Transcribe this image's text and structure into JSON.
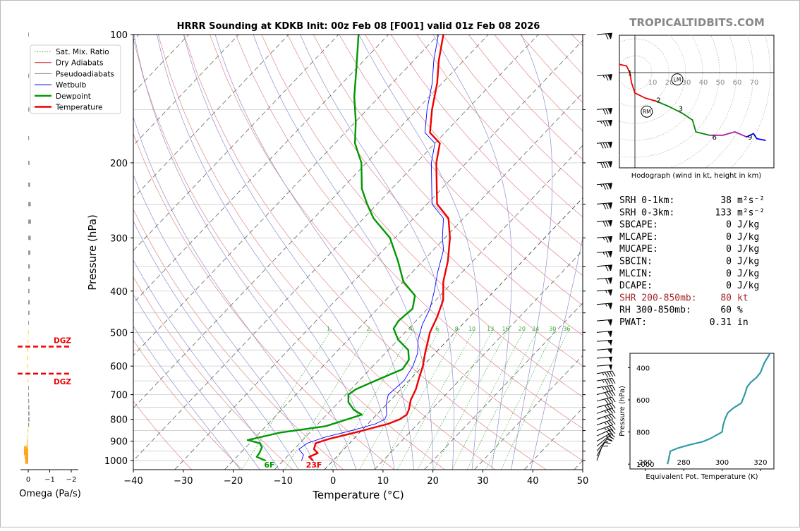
{
  "brand": "TROPICALTIDBITS.COM",
  "chart_data": {
    "type": "skewt",
    "title": "HRRR Sounding at KDKB Init: 00z Feb 08 [F001] valid 01z Feb 08 2026",
    "xlabel": "Temperature (°C)",
    "ylabel": "Pressure (hPa)",
    "xlim": [
      -40,
      50
    ],
    "ylim": [
      1050,
      100
    ],
    "x_ticks": [
      "−40",
      "−30",
      "−20",
      "−10",
      "0",
      "10",
      "20",
      "30",
      "40",
      "50"
    ],
    "y_ticks": [
      "100",
      "200",
      "300",
      "400",
      "500",
      "600",
      "700",
      "800",
      "900",
      "1000"
    ],
    "mixing_ratio_labels": [
      "1",
      "2",
      "4",
      "6",
      "8",
      "10",
      "13",
      "16",
      "20",
      "24",
      "30",
      "36"
    ],
    "legend": [
      {
        "label": "Sat. Mix. Ratio",
        "color": "#2ca02c"
      },
      {
        "label": "Dry Adiabats",
        "color": "#d62728"
      },
      {
        "label": "Pseudoadiabats",
        "color": "#888888"
      },
      {
        "label": "Wetbulb",
        "color": "#0000ff"
      },
      {
        "label": "Dewpoint",
        "color": "#009900"
      },
      {
        "label": "Temperature",
        "color": "#ee0000"
      }
    ],
    "temperature": [
      [
        1000,
        -4
      ],
      [
        980,
        -5.5
      ],
      [
        960,
        -4.5
      ],
      [
        940,
        -6
      ],
      [
        910,
        -6.8
      ],
      [
        890,
        -5
      ],
      [
        860,
        -1
      ],
      [
        840,
        1.5
      ],
      [
        820,
        4
      ],
      [
        800,
        5.5
      ],
      [
        780,
        6
      ],
      [
        760,
        5.5
      ],
      [
        720,
        4
      ],
      [
        680,
        3
      ],
      [
        640,
        1.5
      ],
      [
        600,
        0
      ],
      [
        560,
        -2
      ],
      [
        500,
        -5
      ],
      [
        460,
        -6.5
      ],
      [
        420,
        -8.5
      ],
      [
        380,
        -12
      ],
      [
        340,
        -15
      ],
      [
        300,
        -19
      ],
      [
        270,
        -23
      ],
      [
        250,
        -28
      ],
      [
        230,
        -31
      ],
      [
        200,
        -36
      ],
      [
        180,
        -39
      ],
      [
        170,
        -43
      ],
      [
        150,
        -47
      ],
      [
        130,
        -51
      ],
      [
        115,
        -55
      ],
      [
        100,
        -59
      ]
    ],
    "dewpoint": [
      [
        1000,
        -13.5
      ],
      [
        980,
        -16
      ],
      [
        960,
        -16.2
      ],
      [
        930,
        -16.8
      ],
      [
        910,
        -18
      ],
      [
        895,
        -21
      ],
      [
        860,
        -16
      ],
      [
        830,
        -8
      ],
      [
        800,
        -5
      ],
      [
        780,
        -3
      ],
      [
        760,
        -5.5
      ],
      [
        730,
        -8
      ],
      [
        700,
        -9.5
      ],
      [
        680,
        -9
      ],
      [
        640,
        -6
      ],
      [
        610,
        -3.5
      ],
      [
        580,
        -4
      ],
      [
        550,
        -6
      ],
      [
        520,
        -10
      ],
      [
        490,
        -13
      ],
      [
        470,
        -13.5
      ],
      [
        440,
        -13
      ],
      [
        410,
        -15
      ],
      [
        380,
        -20
      ],
      [
        340,
        -25
      ],
      [
        300,
        -31
      ],
      [
        270,
        -38
      ],
      [
        250,
        -42
      ],
      [
        230,
        -46
      ],
      [
        200,
        -51
      ],
      [
        180,
        -56
      ],
      [
        160,
        -60
      ],
      [
        140,
        -65
      ],
      [
        120,
        -70
      ],
      [
        100,
        -76
      ]
    ],
    "wetbulb": [
      [
        1000,
        -6.3
      ],
      [
        970,
        -7
      ],
      [
        940,
        -9
      ],
      [
        910,
        -8.5
      ],
      [
        880,
        -6
      ],
      [
        850,
        -2
      ],
      [
        820,
        1.5
      ],
      [
        800,
        2.5
      ],
      [
        780,
        2
      ],
      [
        740,
        0
      ],
      [
        700,
        -1.5
      ],
      [
        650,
        -1
      ],
      [
        600,
        -2
      ],
      [
        560,
        -3.5
      ],
      [
        520,
        -6
      ],
      [
        480,
        -8
      ],
      [
        440,
        -9.5
      ],
      [
        400,
        -12
      ],
      [
        360,
        -15
      ],
      [
        320,
        -18
      ],
      [
        300,
        -20.5
      ],
      [
        270,
        -24
      ],
      [
        250,
        -29
      ],
      [
        230,
        -32
      ],
      [
        200,
        -37
      ],
      [
        180,
        -40
      ],
      [
        170,
        -44
      ],
      [
        150,
        -48
      ],
      [
        130,
        -52
      ],
      [
        115,
        -56
      ],
      [
        100,
        -60
      ]
    ],
    "surface_labels": {
      "dewpoint": "6F",
      "temperature": "23F"
    },
    "omega": {
      "label": "Omega (Pa/s)",
      "xlim": [
        -2,
        0.3
      ],
      "x_ticks": [
        "0",
        "−1",
        "−2"
      ],
      "dgz_label": "DGZ",
      "dgz_bounds": [
        540,
        625
      ],
      "bars": [
        [
          1000,
          0.14
        ],
        [
          975,
          0.16
        ],
        [
          955,
          0.2
        ],
        [
          940,
          0.19
        ],
        [
          925,
          0.08
        ],
        [
          900,
          0.06
        ],
        [
          875,
          0.03
        ],
        [
          850,
          0.02
        ],
        [
          825,
          -0.04
        ],
        [
          800,
          -0.06
        ],
        [
          775,
          -0.06
        ],
        [
          750,
          -0.05
        ],
        [
          725,
          -0.04
        ],
        [
          700,
          -0.03
        ],
        [
          675,
          -0.01
        ],
        [
          650,
          0.02
        ],
        [
          625,
          0.03
        ],
        [
          600,
          0.04
        ],
        [
          575,
          0.05
        ],
        [
          550,
          0.04
        ],
        [
          525,
          0.02
        ],
        [
          500,
          0.01
        ],
        [
          475,
          -0.02
        ],
        [
          450,
          -0.06
        ],
        [
          425,
          -0.07
        ],
        [
          400,
          -0.06
        ],
        [
          375,
          -0.08
        ],
        [
          350,
          -0.08
        ],
        [
          325,
          -0.1
        ],
        [
          300,
          -0.12
        ],
        [
          275,
          -0.13
        ],
        [
          250,
          -0.12
        ],
        [
          225,
          -0.09
        ],
        [
          200,
          -0.06
        ],
        [
          175,
          -0.04
        ],
        [
          150,
          -0.05
        ],
        [
          125,
          -0.04
        ],
        [
          100,
          -0.03
        ]
      ]
    },
    "hodograph": {
      "caption": "Hodograph (wind in kt, height in km)",
      "ring_labels": [
        "10",
        "20",
        "30",
        "40",
        "50",
        "60",
        "70"
      ],
      "markers": [
        "LM",
        "RM"
      ],
      "points": [
        [
          -10,
          5,
          "#ee0000"
        ],
        [
          -5,
          4,
          "#ee0000"
        ],
        [
          -3,
          0,
          "#ee0000"
        ],
        [
          -2,
          -6,
          "#ee0000"
        ],
        [
          0,
          -12,
          "#ee0000"
        ],
        [
          6,
          -15,
          "#ee0000"
        ],
        [
          13,
          -17,
          "#ee0000"
        ],
        [
          20,
          -20,
          "#008800"
        ],
        [
          28,
          -24,
          "#008800"
        ],
        [
          34,
          -28,
          "#008800"
        ],
        [
          36,
          -35,
          "#008800"
        ],
        [
          44,
          -37,
          "#008800"
        ],
        [
          52,
          -37,
          "#aa22aa"
        ],
        [
          59,
          -35,
          "#aa22aa"
        ],
        [
          66,
          -38,
          "#aa22aa"
        ],
        [
          70,
          -36,
          "#0000ee"
        ],
        [
          72,
          -39,
          "#0000ee"
        ],
        [
          77,
          -40,
          "#0000ee"
        ]
      ],
      "km_labels": [
        [
          "1",
          -3,
          0
        ],
        [
          "2",
          14,
          -16
        ],
        [
          "3",
          27,
          -21
        ],
        [
          "6",
          47,
          -38
        ],
        [
          "9",
          68,
          -38
        ]
      ],
      "lm": [
        25,
        -4
      ],
      "rm": [
        7,
        -23
      ]
    },
    "theta_e": {
      "xlabel": "Equivalent Pot. Temperature (K)",
      "ylabel": "Pressure (hPa)",
      "xlim": [
        252,
        327
      ],
      "ylim": [
        1030,
        310
      ],
      "x_ticks": [
        "260",
        "280",
        "300",
        "320"
      ],
      "y_ticks": [
        "400",
        "600",
        "800",
        "1000"
      ],
      "color": "#3399aa",
      "points": [
        [
          1000,
          271.5
        ],
        [
          980,
          272
        ],
        [
          920,
          273
        ],
        [
          900,
          277
        ],
        [
          880,
          283
        ],
        [
          860,
          290
        ],
        [
          840,
          294
        ],
        [
          820,
          297
        ],
        [
          800,
          300
        ],
        [
          760,
          300.5
        ],
        [
          720,
          301.5
        ],
        [
          680,
          303
        ],
        [
          650,
          306
        ],
        [
          620,
          310
        ],
        [
          590,
          311
        ],
        [
          560,
          312
        ],
        [
          520,
          313
        ],
        [
          490,
          315
        ],
        [
          460,
          318
        ],
        [
          430,
          320
        ],
        [
          400,
          321
        ],
        [
          370,
          322
        ],
        [
          340,
          323.5
        ],
        [
          310,
          325
        ]
      ]
    }
  },
  "indices": [
    {
      "label": "SRH 0-1km:",
      "value": "38",
      "unit": "m²s⁻²",
      "color": "#000000"
    },
    {
      "label": "SRH 0-3km:",
      "value": "133",
      "unit": "m²s⁻²",
      "color": "#000000"
    },
    {
      "label": "SBCAPE:",
      "value": "0",
      "unit": "J/kg",
      "color": "#000000"
    },
    {
      "label": "MLCAPE:",
      "value": "0",
      "unit": "J/kg",
      "color": "#000000"
    },
    {
      "label": "MUCAPE:",
      "value": "0",
      "unit": "J/kg",
      "color": "#000000"
    },
    {
      "label": "SBCIN:",
      "value": "0",
      "unit": "J/kg",
      "color": "#000000"
    },
    {
      "label": "MLCIN:",
      "value": "0",
      "unit": "J/kg",
      "color": "#000000"
    },
    {
      "label": "DCAPE:",
      "value": "0",
      "unit": "J/kg",
      "color": "#000000"
    },
    {
      "label": "SHR 200-850mb:",
      "value": "80",
      "unit": "kt",
      "color": "#a0282a"
    },
    {
      "label": "RH 300-850mb:",
      "value": "60",
      "unit": "%",
      "color": "#000000"
    },
    {
      "label": "PWAT:",
      "value": "0.31",
      "unit": "in",
      "color": "#000000"
    }
  ],
  "wind_barbs": [
    [
      1000,
      10,
      200
    ],
    [
      975,
      10,
      210
    ],
    [
      950,
      15,
      220
    ],
    [
      925,
      20,
      230
    ],
    [
      900,
      25,
      240
    ],
    [
      875,
      30,
      245
    ],
    [
      850,
      35,
      250
    ],
    [
      825,
      35,
      250
    ],
    [
      800,
      35,
      250
    ],
    [
      775,
      35,
      250
    ],
    [
      750,
      40,
      255
    ],
    [
      725,
      40,
      255
    ],
    [
      700,
      40,
      255
    ],
    [
      675,
      45,
      260
    ],
    [
      650,
      45,
      260
    ],
    [
      625,
      45,
      260
    ],
    [
      600,
      50,
      265
    ],
    [
      575,
      50,
      265
    ],
    [
      550,
      55,
      265
    ],
    [
      525,
      55,
      265
    ],
    [
      500,
      60,
      265
    ],
    [
      470,
      60,
      265
    ],
    [
      430,
      65,
      265
    ],
    [
      400,
      65,
      265
    ],
    [
      375,
      70,
      265
    ],
    [
      350,
      70,
      265
    ],
    [
      325,
      75,
      265
    ],
    [
      300,
      75,
      265
    ],
    [
      275,
      80,
      265
    ],
    [
      250,
      80,
      265
    ],
    [
      225,
      85,
      265
    ],
    [
      200,
      90,
      265
    ],
    [
      180,
      90,
      265
    ],
    [
      160,
      85,
      265
    ],
    [
      150,
      80,
      265
    ],
    [
      125,
      75,
      265
    ],
    [
      100,
      70,
      265
    ]
  ]
}
